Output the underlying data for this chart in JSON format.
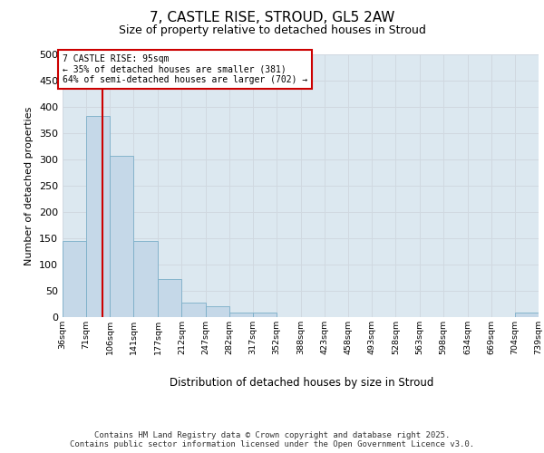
{
  "title_line1": "7, CASTLE RISE, STROUD, GL5 2AW",
  "title_line2": "Size of property relative to detached houses in Stroud",
  "xlabel": "Distribution of detached houses by size in Stroud",
  "ylabel": "Number of detached properties",
  "footnote": "Contains HM Land Registry data © Crown copyright and database right 2025.\nContains public sector information licensed under the Open Government Licence v3.0.",
  "bar_edges": [
    36,
    71,
    106,
    141,
    177,
    212,
    247,
    282,
    317,
    352,
    388,
    423,
    458,
    493,
    528,
    563,
    598,
    634,
    669,
    704,
    739
  ],
  "bar_heights": [
    145,
    383,
    307,
    145,
    73,
    28,
    20,
    8,
    8,
    0,
    0,
    0,
    0,
    0,
    0,
    0,
    0,
    0,
    0,
    8
  ],
  "bar_color": "#c5d8e8",
  "bar_edgecolor": "#7aaec8",
  "grid_color": "#d0d8e0",
  "bg_color": "#dce8f0",
  "property_line_x": 95,
  "property_line_color": "#cc0000",
  "ylim": [
    0,
    500
  ],
  "yticks": [
    0,
    50,
    100,
    150,
    200,
    250,
    300,
    350,
    400,
    450,
    500
  ],
  "annotation_text": "7 CASTLE RISE: 95sqm\n← 35% of detached houses are smaller (381)\n64% of semi-detached houses are larger (702) →",
  "annotation_box_color": "#cc0000",
  "tick_labels": [
    "36sqm",
    "71sqm",
    "106sqm",
    "141sqm",
    "177sqm",
    "212sqm",
    "247sqm",
    "282sqm",
    "317sqm",
    "352sqm",
    "388sqm",
    "423sqm",
    "458sqm",
    "493sqm",
    "528sqm",
    "563sqm",
    "598sqm",
    "634sqm",
    "669sqm",
    "704sqm",
    "739sqm"
  ]
}
